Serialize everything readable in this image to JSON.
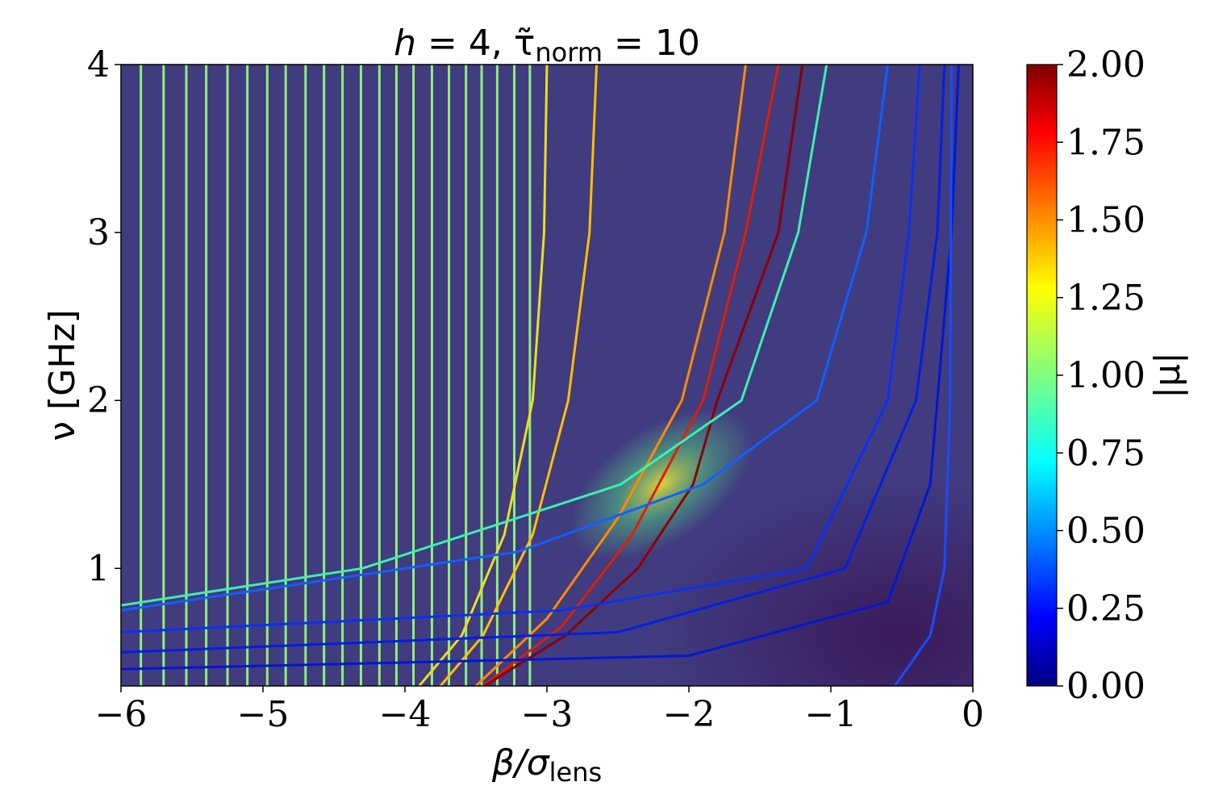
{
  "chart_data": {
    "type": "heatmap",
    "title": {
      "lead": "h",
      "mid": " = 4, τ̃",
      "sub": "norm",
      "tail": " = 10"
    },
    "x_label": {
      "main": "β/σ",
      "sub": "lens"
    },
    "y_label": "ν [GHz]",
    "xlim": [
      -6,
      0
    ],
    "ylim": [
      0.3,
      4
    ],
    "xticks": [
      {
        "value": -6,
        "label": "−6"
      },
      {
        "value": -5,
        "label": "−5"
      },
      {
        "value": -4,
        "label": "−4"
      },
      {
        "value": -3,
        "label": "−3"
      },
      {
        "value": -2,
        "label": "−2"
      },
      {
        "value": -1,
        "label": "−1"
      },
      0
    ],
    "yticks": [
      1,
      2,
      3,
      4
    ],
    "background_color": "#413b80",
    "vlines": {
      "color": "#8ef07a",
      "x": [
        -5.86,
        -5.7,
        -5.54,
        -5.4,
        -5.25,
        -5.11,
        -4.97,
        -4.84,
        -4.7,
        -4.57,
        -4.44,
        -4.31,
        -4.18,
        -4.06,
        -3.94,
        -3.81,
        -3.69,
        -3.57,
        -3.46,
        -3.35,
        -3.23,
        -3.12
      ]
    },
    "curves": [
      {
        "color": "#e8e020",
        "x": [
          -3.0,
          -3.02,
          -3.1,
          -3.3,
          -3.6,
          -3.9
        ],
        "values": [
          4,
          3,
          2,
          1.2,
          0.6,
          0.3
        ]
      },
      {
        "color": "#ffc000",
        "x": [
          -2.65,
          -2.7,
          -2.85,
          -3.1,
          -3.45,
          -3.75
        ],
        "values": [
          4,
          3,
          2,
          1.2,
          0.6,
          0.3
        ]
      },
      {
        "color": "#ff8c00",
        "x": [
          -1.6,
          -1.75,
          -2.05,
          -2.5,
          -3.0,
          -3.5
        ],
        "values": [
          4,
          3,
          2,
          1.3,
          0.7,
          0.3
        ]
      },
      {
        "color": "#e02000",
        "x": [
          -1.37,
          -1.6,
          -1.9,
          -2.4,
          -2.9,
          -3.45
        ],
        "values": [
          4,
          3,
          2,
          1.2,
          0.65,
          0.3
        ]
      },
      {
        "color": "#8b0000",
        "x": [
          -1.2,
          -1.37,
          -1.8,
          -1.97,
          -2.36,
          -2.87,
          -3.44
        ],
        "values": [
          4,
          3,
          2,
          1.5,
          1,
          0.6,
          0.3
        ]
      },
      {
        "color": "#3cf0b0",
        "x": [
          -1.03,
          -1.23,
          -1.63,
          -2.48,
          -4.3,
          -6
        ],
        "values": [
          4,
          3,
          2,
          1.5,
          1,
          0.78
        ]
      },
      {
        "color": "#1060ff",
        "x": [
          -0.6,
          -0.75,
          -1.1,
          -1.9,
          -3.2,
          -6
        ],
        "values": [
          4,
          3,
          2,
          1.5,
          1.1,
          0.75
        ]
      },
      {
        "color": "#0a30f0",
        "x": [
          -0.375,
          -0.45,
          -0.6,
          -1.17,
          -2.9,
          -6
        ],
        "values": [
          4,
          3,
          2,
          1,
          0.75,
          0.62
        ]
      },
      {
        "color": "#0020e0",
        "x": [
          -0.2,
          -0.25,
          -0.4,
          -0.9,
          -2.5,
          -6
        ],
        "values": [
          4,
          3,
          2,
          1,
          0.62,
          0.5
        ]
      },
      {
        "color": "#0018d0",
        "x": [
          -0.1,
          -0.15,
          -0.3,
          -0.6,
          -2.0,
          -6
        ],
        "values": [
          4,
          3,
          1.5,
          0.8,
          0.48,
          0.4
        ]
      },
      {
        "color": "#1a4cff",
        "x": [
          -0.15,
          -0.16,
          -0.2,
          -0.3,
          -0.55
        ],
        "values": [
          4,
          2,
          1,
          0.6,
          0.3
        ]
      }
    ],
    "colorbar": {
      "label": "|μ|",
      "colormap": "jet",
      "lim": [
        0,
        2
      ],
      "ticks": [
        {
          "value": 0,
          "label": "0.00"
        },
        {
          "value": 0.25,
          "label": "0.25"
        },
        {
          "value": 0.5,
          "label": "0.50"
        },
        {
          "value": 0.75,
          "label": "0.75"
        },
        {
          "value": 1,
          "label": "1.00"
        },
        {
          "value": 1.25,
          "label": "1.25"
        },
        {
          "value": 1.5,
          "label": "1.50"
        },
        {
          "value": 1.75,
          "label": "1.75"
        },
        {
          "value": 2,
          "label": "2.00"
        }
      ]
    }
  }
}
